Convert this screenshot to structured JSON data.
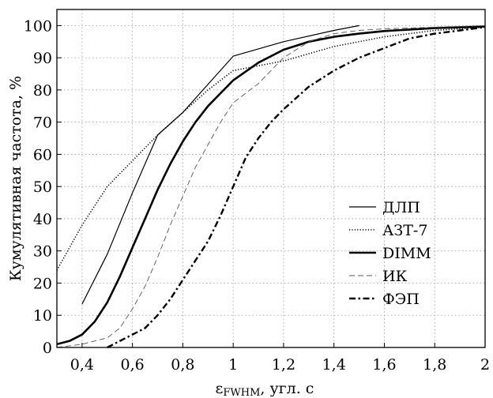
{
  "chart_data": {
    "type": "line",
    "title": "",
    "xlabel": "εFWHM, угл. с",
    "xlabel_main": "ε",
    "xlabel_sub": "FWHM",
    "xlabel_rest": ", угл. с",
    "ylabel": "Кумулятивная частота, %",
    "xlim": [
      0.3,
      2.0
    ],
    "ylim": [
      0,
      105
    ],
    "xticks": [
      0.4,
      0.6,
      0.8,
      1.0,
      1.2,
      1.4,
      1.6,
      1.8,
      2.0
    ],
    "xtick_labels": [
      "0,4",
      "0,6",
      "0,8",
      "1",
      "1,2",
      "1,4",
      "1,6",
      "1,8",
      "2"
    ],
    "yticks": [
      0,
      10,
      20,
      30,
      40,
      50,
      60,
      70,
      80,
      90,
      100
    ],
    "ytick_labels": [
      "0",
      "10",
      "20",
      "30",
      "40",
      "50",
      "60",
      "70",
      "80",
      "90",
      "100"
    ],
    "grid": true,
    "legend_position": "right",
    "series": [
      {
        "name": "ДЛП",
        "style": "solid-thin",
        "x": [
          0.4,
          0.5,
          0.6,
          0.7,
          0.8,
          1.0,
          1.2,
          1.4,
          1.5
        ],
        "y": [
          13.5,
          29,
          48,
          66,
          73,
          90.5,
          95,
          98.5,
          100
        ]
      },
      {
        "name": "АЗТ-7",
        "style": "dotted",
        "x": [
          0.3,
          0.4,
          0.5,
          0.6,
          0.7,
          0.8,
          0.9,
          1.0,
          1.2,
          1.4,
          1.6,
          1.8,
          2.0
        ],
        "y": [
          24,
          38,
          50,
          58,
          66,
          73,
          80,
          86,
          89,
          93.5,
          96.5,
          98.5,
          99.5
        ]
      },
      {
        "name": "DIMM",
        "style": "solid-thick",
        "x": [
          0.3,
          0.35,
          0.4,
          0.45,
          0.5,
          0.55,
          0.6,
          0.65,
          0.7,
          0.75,
          0.8,
          0.85,
          0.9,
          0.95,
          1.0,
          1.1,
          1.2,
          1.3,
          1.4,
          1.5,
          1.6,
          1.8,
          2.0
        ],
        "y": [
          1,
          2,
          4,
          8,
          14,
          22,
          31,
          40,
          49,
          57,
          64,
          70,
          75,
          79,
          83,
          88.5,
          92.5,
          95,
          96.5,
          97.5,
          98.3,
          99.2,
          99.7
        ]
      },
      {
        "name": "ИК",
        "style": "dashed-thin",
        "x": [
          0.3,
          0.4,
          0.45,
          0.5,
          0.55,
          0.6,
          0.65,
          0.7,
          0.75,
          0.8,
          0.85,
          0.9,
          0.95,
          1.0,
          1.05,
          1.1,
          1.15,
          1.2,
          1.3,
          1.4,
          1.5,
          1.6,
          1.8,
          2.0
        ],
        "y": [
          0,
          1,
          2,
          3,
          6,
          12,
          19,
          28,
          38,
          47,
          56,
          63,
          70,
          76,
          79,
          82,
          86,
          90,
          95,
          97.5,
          98.5,
          99,
          99.5,
          100
        ]
      },
      {
        "name": "ФЭП",
        "style": "dashdot-thick",
        "x": [
          0.5,
          0.55,
          0.6,
          0.65,
          0.7,
          0.75,
          0.8,
          0.85,
          0.9,
          0.95,
          1.0,
          1.05,
          1.1,
          1.15,
          1.2,
          1.3,
          1.4,
          1.5,
          1.6,
          1.7,
          1.8,
          1.9,
          2.0
        ],
        "y": [
          0,
          2,
          4,
          6,
          10,
          15,
          21,
          27,
          33,
          41,
          50,
          59,
          65,
          70,
          74,
          81,
          86,
          90,
          93,
          96,
          97.5,
          98.5,
          99.5
        ]
      }
    ]
  }
}
